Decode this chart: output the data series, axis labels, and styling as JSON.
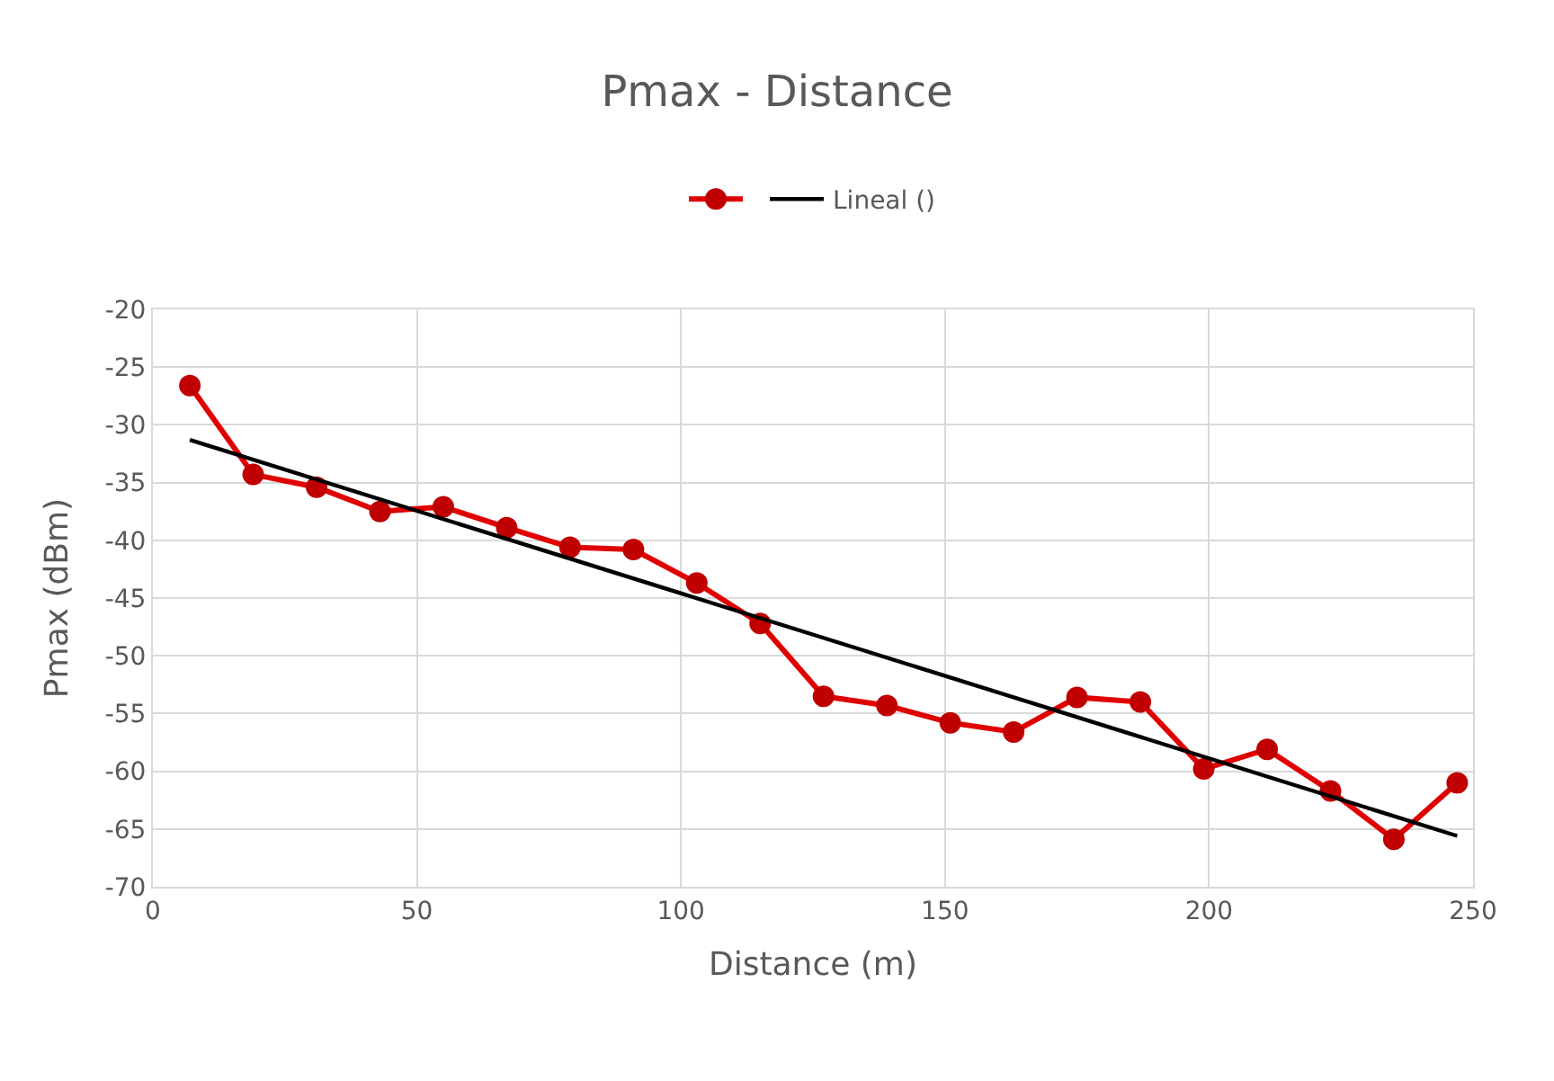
{
  "chart_data": {
    "type": "line",
    "title": "Pmax - Distance",
    "xlabel": "Distance (m)",
    "ylabel": "Pmax (dBm)",
    "x": [
      7,
      19,
      31,
      43,
      55,
      67,
      79,
      91,
      103,
      115,
      127,
      139,
      151,
      163,
      175,
      187,
      199,
      211,
      223,
      235,
      247
    ],
    "series": [
      {
        "color": "#e00000",
        "marker": "circle",
        "values": [
          -26.6,
          -34.3,
          -35.4,
          -37.5,
          -37.1,
          -38.9,
          -40.6,
          -40.8,
          -43.7,
          -47.2,
          -53.5,
          -54.3,
          -55.8,
          -56.6,
          -53.6,
          -54.0,
          -59.8,
          -58.1,
          -61.7,
          -65.9,
          -61.0
        ]
      },
      {
        "name": "Lineal ()",
        "color": "#000000",
        "type": "line",
        "marker": "none",
        "x": [
          7,
          247
        ],
        "values": [
          -31.3,
          -65.6
        ]
      }
    ],
    "xlim": [
      0,
      250
    ],
    "xticks": [
      0,
      50,
      100,
      150,
      200,
      250
    ],
    "ylim": [
      -70,
      -20
    ],
    "yticks": [
      -70,
      -65,
      -60,
      -55,
      -50,
      -45,
      -40,
      -35,
      -30,
      -25,
      -20
    ],
    "grid": true,
    "legend": "top"
  }
}
